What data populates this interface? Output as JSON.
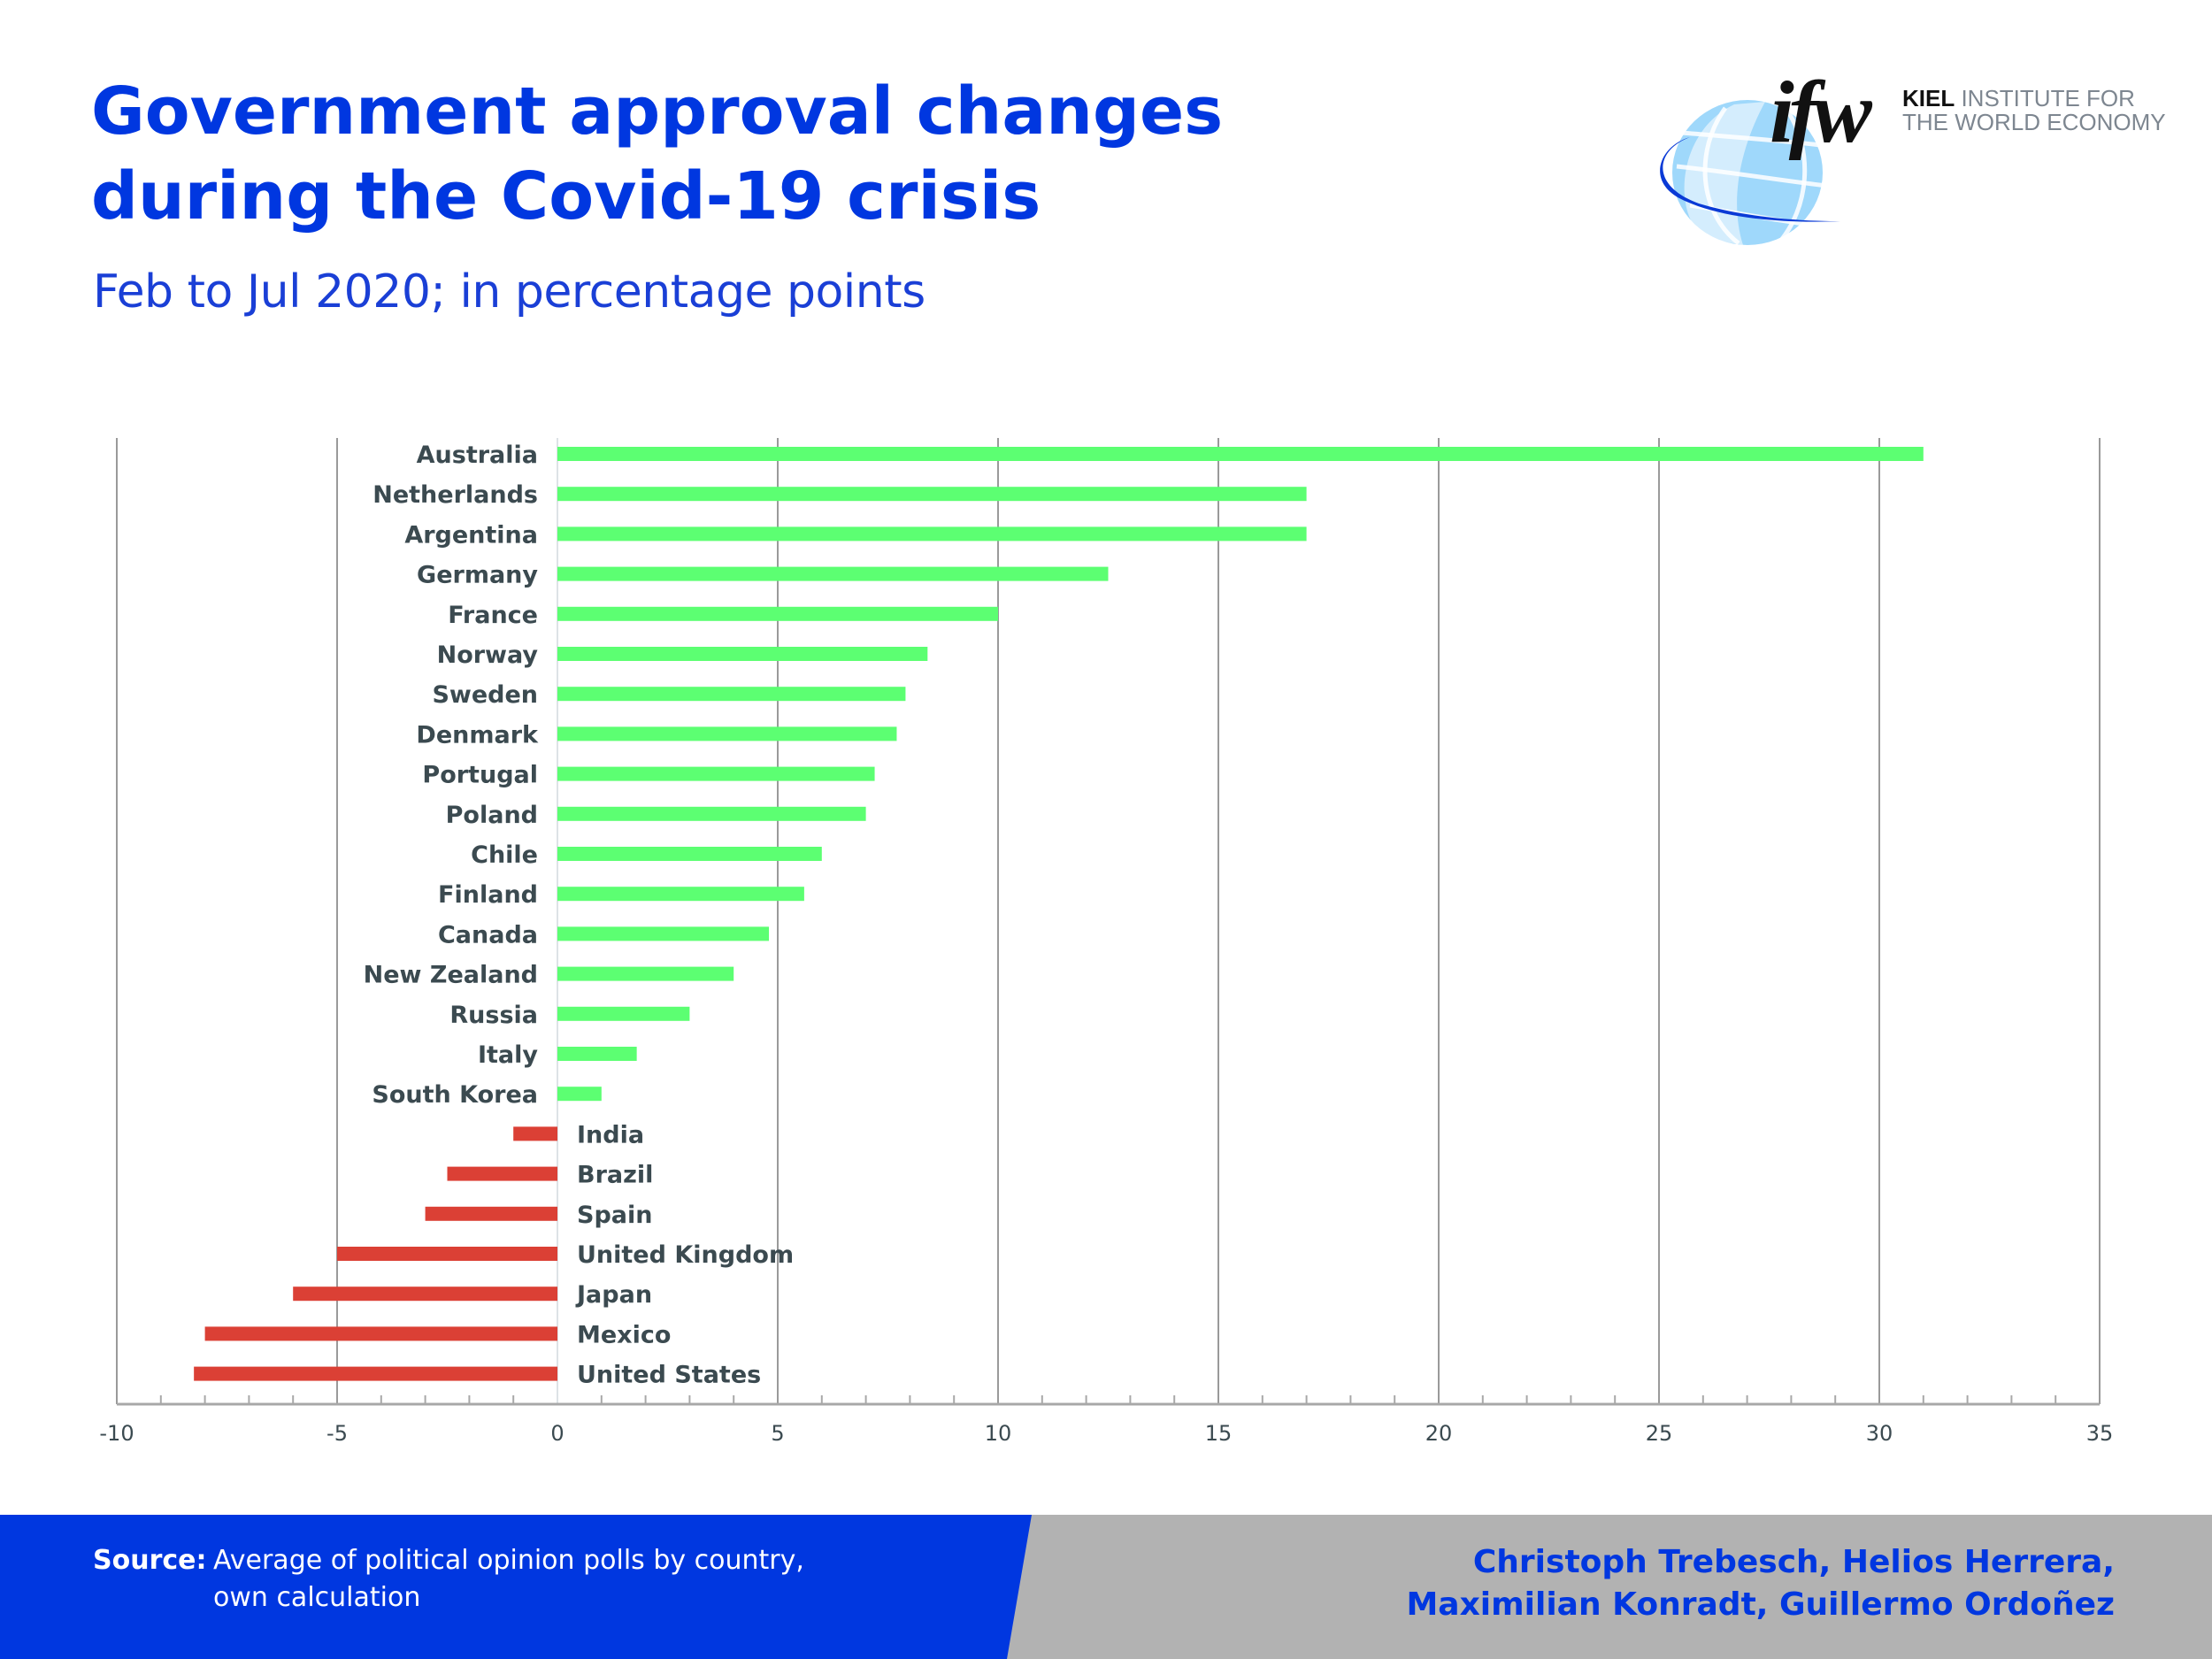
{
  "header": {
    "title_lines": [
      "Government approval changes",
      "during the Covid-19 crisis"
    ],
    "subtitle": "Feb to Jul 2020; in percentage points"
  },
  "logo": {
    "mark": "ifw",
    "name_bold": "KIEL",
    "name_rest": " INSTITUTE FOR",
    "name_line2": "THE WORLD ECONOMY",
    "icon": "globe-icon"
  },
  "colors": {
    "brand_blue": "#0037e0",
    "positive_bar": "#5cff72",
    "negative_bar": "#db4035",
    "label_text": "#3b4a50",
    "footer_grey": "#b2b2b2"
  },
  "chart_data": {
    "type": "bar",
    "orientation": "horizontal",
    "title": "Government approval changes during the Covid-19 crisis",
    "subtitle": "Feb to Jul 2020; in percentage points",
    "xlabel": "",
    "ylabel": "",
    "xlim": [
      -10,
      35
    ],
    "x_ticks": [
      -10,
      -5,
      0,
      5,
      10,
      15,
      20,
      25,
      30,
      35
    ],
    "x_tick_labels": [
      "-10",
      "-5",
      "0",
      "5",
      "10",
      "15",
      "20",
      "25",
      "30",
      "35"
    ],
    "minor_tick_step": 1,
    "grid": true,
    "legend": "none",
    "categories": [
      "Australia",
      "Netherlands",
      "Argentina",
      "Germany",
      "France",
      "Norway",
      "Sweden",
      "Denmark",
      "Portugal",
      "Poland",
      "Chile",
      "Finland",
      "Canada",
      "New Zealand",
      "Russia",
      "Italy",
      "South Korea",
      "India",
      "Brazil",
      "Spain",
      "United Kingdom",
      "Japan",
      "Mexico",
      "United States"
    ],
    "values": [
      31.0,
      17.0,
      17.0,
      12.5,
      10.0,
      8.4,
      7.9,
      7.7,
      7.2,
      7.0,
      6.0,
      5.6,
      4.8,
      4.0,
      3.0,
      1.8,
      1.0,
      -1.0,
      -2.5,
      -3.0,
      -5.0,
      -6.0,
      -8.0,
      -8.25
    ]
  },
  "footer": {
    "source_label": "Source:",
    "source_line1": "Average of political opinion polls by country,",
    "source_line2": "own calculation",
    "authors_line1": "Christoph Trebesch, Helios Herrera,",
    "authors_line2": "Maximilian Konradt, Guillermo Ordoñez"
  }
}
